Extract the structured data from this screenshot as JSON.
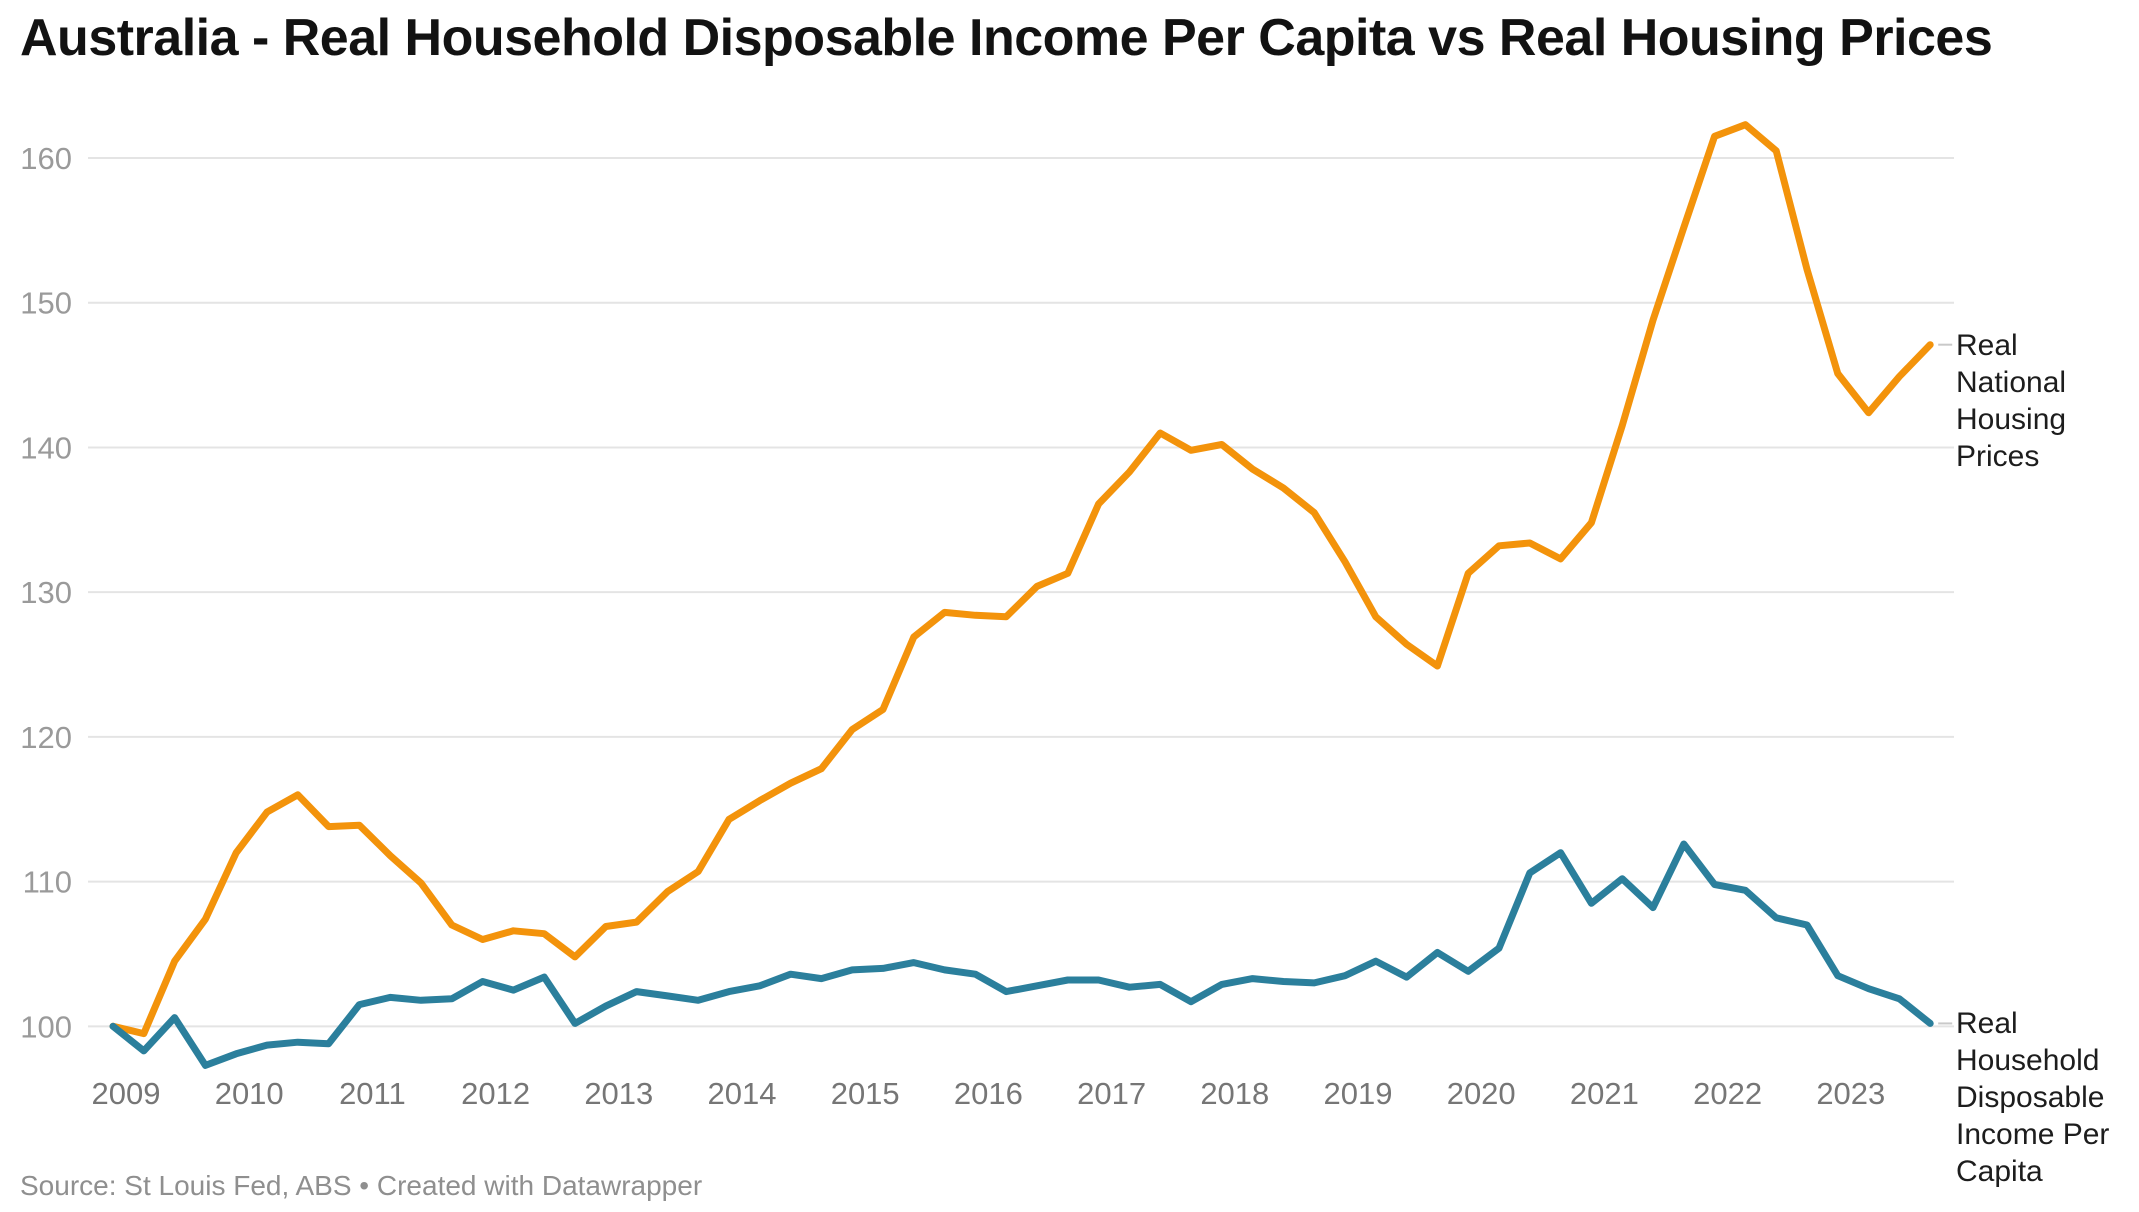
{
  "title": "Australia - Real Household Disposable Income Per Capita vs Real Housing Prices",
  "source_note": "Source: St Louis Fed, ABS • Created with Datawrapper",
  "axis": {
    "y_ticks": [
      100,
      110,
      120,
      130,
      140,
      150,
      160
    ],
    "x_ticks": [
      "2009",
      "2010",
      "2011",
      "2012",
      "2013",
      "2014",
      "2015",
      "2016",
      "2017",
      "2018",
      "2019",
      "2020",
      "2021",
      "2022",
      "2023"
    ]
  },
  "colors": {
    "housing_line": "#f3930b",
    "income_line": "#2b7f9c",
    "grid": "#e4e4e4",
    "y_tick_text": "#9a9a9a",
    "x_tick_text": "#767676",
    "series_label_text": "#1d1d1d",
    "connector": "#c9c9c9"
  },
  "chart_data": {
    "type": "line",
    "title": "Australia - Real Household Disposable Income Per Capita vs Real Housing Prices",
    "frequency": "quarterly",
    "x_start": "2009-Q1",
    "x_end": "2023-Q4",
    "xlabel": "",
    "ylabel": "",
    "ylim": [
      96.5,
      163.5
    ],
    "grid": "horizontal",
    "legend_position": "right-edge-of-lines",
    "categories_years": [
      "2009",
      "2010",
      "2011",
      "2012",
      "2013",
      "2014",
      "2015",
      "2016",
      "2017",
      "2018",
      "2019",
      "2020",
      "2021",
      "2022",
      "2023"
    ],
    "series": [
      {
        "name": "Real National Housing Prices",
        "color": "#f3930b",
        "values": [
          100,
          99.5,
          104.5,
          107.4,
          112.0,
          114.8,
          116.0,
          113.8,
          113.9,
          111.8,
          109.9,
          107.0,
          106.0,
          106.6,
          106.4,
          104.8,
          106.9,
          107.2,
          109.3,
          110.7,
          114.3,
          115.6,
          116.8,
          117.8,
          120.5,
          121.9,
          126.9,
          128.6,
          128.4,
          128.3,
          130.4,
          131.3,
          136.1,
          138.3,
          141.0,
          139.8,
          140.2,
          138.5,
          137.2,
          135.5,
          132.1,
          128.3,
          126.4,
          124.9,
          131.3,
          133.2,
          133.4,
          132.3,
          134.8,
          141.5,
          148.8,
          155.2,
          161.5,
          162.3,
          160.5,
          152.3,
          145.1,
          142.4,
          144.9,
          147.1
        ]
      },
      {
        "name": "Real Household Disposable Income Per Capita",
        "color": "#2b7f9c",
        "values": [
          100,
          98.3,
          100.6,
          97.3,
          98.1,
          98.7,
          98.9,
          98.8,
          101.5,
          102.0,
          101.8,
          101.9,
          103.1,
          102.5,
          103.4,
          100.2,
          101.4,
          102.4,
          102.1,
          101.8,
          102.4,
          102.8,
          103.6,
          103.3,
          103.9,
          104.0,
          104.4,
          103.9,
          103.6,
          102.4,
          102.8,
          103.2,
          103.2,
          102.7,
          102.9,
          101.7,
          102.9,
          103.3,
          103.1,
          103.0,
          103.5,
          104.5,
          103.4,
          105.1,
          103.8,
          105.4,
          110.6,
          112.0,
          108.5,
          110.2,
          108.2,
          112.6,
          109.8,
          109.4,
          107.5,
          107.0,
          103.5,
          102.6,
          101.9,
          100.2
        ]
      }
    ]
  }
}
